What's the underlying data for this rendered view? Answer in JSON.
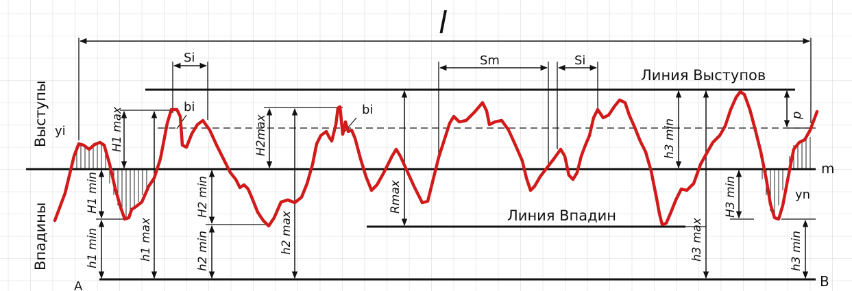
{
  "labels": {
    "length": "l",
    "s_i_left": "Si",
    "s_m": "Sm",
    "s_i_right": "Si",
    "b_left": "bi",
    "b_middle": "bi",
    "peaks_line": "Линия  Выступов",
    "valleys_line": "Линия  Впадин",
    "peaks_side": "Выступы",
    "valleys_side": "Впадины",
    "y_i": "yi",
    "y_n": "yn",
    "mean_line": "m",
    "point_a": "A",
    "point_b": "B",
    "p": "p",
    "R_max": "Rmax",
    "H1_max": "H1 max",
    "H1_min": "H1 min",
    "h1_min": "h1 min",
    "h1_max": "h1 max",
    "H2_max": "H2max",
    "H2_min": "H2 min",
    "h2_min": "h2 min",
    "h2_max": "h2 max",
    "h3_min_upper": "h3 min",
    "h3_max": "h3 max",
    "H3_min": "H3 min",
    "h3_min_lower": "h3 min"
  },
  "colors": {
    "profile": "#d11a1a",
    "lines": "#111111",
    "grid": "#d9d9d9"
  }
}
